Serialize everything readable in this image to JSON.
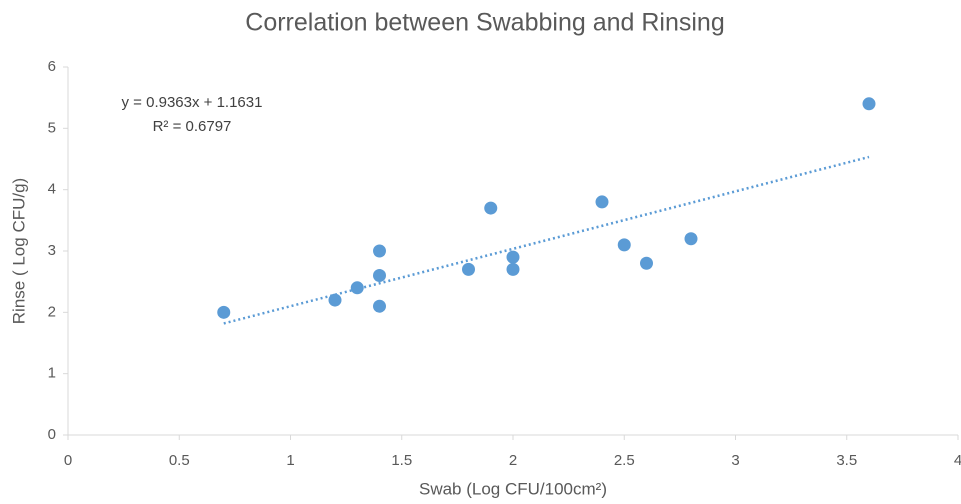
{
  "chart_data": {
    "type": "scatter",
    "title": "Correlation between Swabbing and Rinsing",
    "x_label": "Swab (Log CFU/100cm²)",
    "y_label": "Rinse ( Log CFU/g)",
    "series": [
      {
        "name": "Rinse",
        "color": "#5b9bd5",
        "x": [
          0.7,
          1.2,
          1.3,
          1.4,
          1.4,
          1.4,
          1.8,
          1.9,
          2.0,
          2.0,
          2.4,
          2.5,
          2.6,
          2.8,
          3.6
        ],
        "values": [
          2.0,
          2.2,
          2.4,
          3.0,
          2.6,
          2.1,
          2.7,
          3.7,
          2.9,
          2.7,
          3.8,
          3.1,
          2.8,
          3.2,
          5.4
        ]
      }
    ],
    "trendline": {
      "slope": 0.9363,
      "intercept": 1.1631,
      "equation": "y = 0.9363x + 1.1631",
      "r_squared": "R² = 0.6797"
    },
    "xlim": [
      0,
      4
    ],
    "xticks": [
      0,
      0.5,
      1,
      1.5,
      2,
      2.5,
      3,
      3.5,
      4
    ],
    "ylim": [
      0,
      6
    ],
    "yticks": [
      0,
      1,
      2,
      3,
      4,
      5,
      6
    ],
    "grid": false
  }
}
